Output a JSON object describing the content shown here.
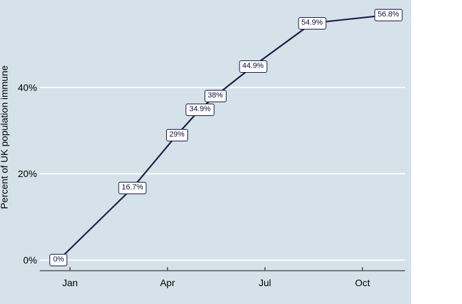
{
  "chart_data": {
    "type": "line",
    "title": "",
    "xlabel": "",
    "ylabel": "Percent of UK population immune",
    "x_unit": "months_after_january_tick",
    "x_ticks": [
      {
        "label": "Jan",
        "month": 0
      },
      {
        "label": "Apr",
        "month": 3
      },
      {
        "label": "Jul",
        "month": 6
      },
      {
        "label": "Oct",
        "month": 9
      }
    ],
    "y_ticks": [
      {
        "label": "0%",
        "value": 0
      },
      {
        "label": "20%",
        "value": 20
      },
      {
        "label": "40%",
        "value": 40
      }
    ],
    "gridline_values": [
      0,
      20,
      40
    ],
    "grid": true,
    "legend": "none",
    "ylim": [
      0,
      60
    ],
    "xlim_months": [
      -0.95,
      10.3
    ],
    "series": [
      {
        "name": "Percent of UK population immune",
        "points": [
          {
            "x_month": -0.35,
            "value": 0,
            "label": "0%"
          },
          {
            "x_month": 1.92,
            "value": 16.7,
            "label": "16.7%"
          },
          {
            "x_month": 3.29,
            "value": 29,
            "label": "29%"
          },
          {
            "x_month": 4.0,
            "value": 34.9,
            "label": "34.9%"
          },
          {
            "x_month": 4.47,
            "value": 38,
            "label": "38%"
          },
          {
            "x_month": 5.63,
            "value": 44.9,
            "label": "44.9%"
          },
          {
            "x_month": 7.45,
            "value": 54.9,
            "label": "54.9%"
          },
          {
            "x_month": 9.8,
            "value": 56.8,
            "label": "56.8%"
          }
        ]
      }
    ]
  },
  "colors": {
    "plot_background": "#d5e2e9",
    "page_background": "#ffffff",
    "gridline": "#ffffff",
    "series_line": "#1c1c44",
    "axis_line": "#555555",
    "tick_mark": "#333333",
    "tick_text": "#000000",
    "y_title_text": "#000000",
    "label_box_bg": "#ffffff",
    "label_box_border": "#16164a",
    "label_box_text": "#10103a"
  }
}
